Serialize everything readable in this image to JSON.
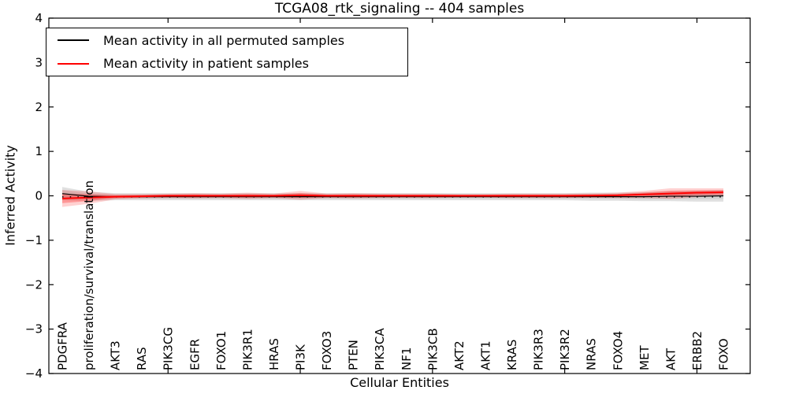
{
  "figure": {
    "title": "TCGA08_rtk_signaling -- 404 samples",
    "xlabel": "Cellular Entities",
    "ylabel": "Inferred Activity"
  },
  "legend": {
    "position": "upper left",
    "entries": [
      {
        "label": "Mean activity in all permuted samples",
        "color": "#000000"
      },
      {
        "label": "Mean activity in patient samples",
        "color": "#ff0000"
      }
    ]
  },
  "chart_data": {
    "type": "line",
    "title": "TCGA08_rtk_signaling -- 404 samples",
    "xlabel": "Cellular Entities",
    "ylabel": "Inferred Activity",
    "ylim": [
      -4,
      4
    ],
    "ytick_values": [
      4,
      3,
      2,
      1,
      0,
      -1,
      -2,
      -3,
      -4
    ],
    "ytick_labels": [
      "4",
      "3",
      "2",
      "1",
      "0",
      "−1",
      "−2",
      "−3",
      "−4"
    ],
    "grid": false,
    "legend_position": "upper left",
    "categories": [
      "PDGFRA",
      "proliferation/survival/translation",
      "AKT3",
      "RAS",
      "PIK3CG",
      "EGFR",
      "FOXO1",
      "PIK3R1",
      "HRAS",
      "PI3K",
      "FOXO3",
      "PTEN",
      "PIK3CA",
      "NF1",
      "PIK3CB",
      "AKT2",
      "AKT1",
      "KRAS",
      "PIK3R3",
      "PIK3R2",
      "NRAS",
      "FOXO4",
      "MET",
      "AKT",
      "ERBB2",
      "FOXO"
    ],
    "x_major_tick_indices": [
      4,
      9,
      14,
      19,
      24
    ],
    "series": [
      {
        "name": "Mean activity in all permuted samples",
        "color": "#000000",
        "line_width": 1.2,
        "values": [
          0.05,
          -0.01,
          -0.02,
          -0.02,
          -0.02,
          -0.02,
          -0.02,
          -0.02,
          -0.02,
          -0.02,
          -0.02,
          -0.02,
          -0.02,
          -0.02,
          -0.02,
          -0.02,
          -0.02,
          -0.02,
          -0.02,
          -0.02,
          -0.02,
          -0.02,
          -0.02,
          -0.01,
          -0.01,
          0.0
        ],
        "band_std": [
          0.15,
          0.1,
          0.08,
          0.08,
          0.08,
          0.08,
          0.08,
          0.08,
          0.08,
          0.08,
          0.08,
          0.08,
          0.08,
          0.08,
          0.08,
          0.08,
          0.08,
          0.08,
          0.08,
          0.08,
          0.09,
          0.09,
          0.1,
          0.11,
          0.12,
          0.13
        ],
        "band_color": "rgba(0,0,0,0.12)",
        "band_inner_color": "rgba(0,0,0,0.06)"
      },
      {
        "name": "Mean activity in patient samples",
        "color": "#ff0000",
        "line_width": 2,
        "values": [
          -0.06,
          -0.04,
          -0.02,
          -0.01,
          0.0,
          0.0,
          0.0,
          0.0,
          0.0,
          0.01,
          0.0,
          0.0,
          0.0,
          0.0,
          0.0,
          0.0,
          0.0,
          0.0,
          0.0,
          0.0,
          0.005,
          0.01,
          0.03,
          0.05,
          0.07,
          0.08
        ],
        "band_std": [
          0.19,
          0.14,
          0.06,
          0.05,
          0.05,
          0.06,
          0.05,
          0.07,
          0.05,
          0.1,
          0.05,
          0.06,
          0.05,
          0.05,
          0.05,
          0.04,
          0.04,
          0.05,
          0.05,
          0.05,
          0.05,
          0.06,
          0.08,
          0.12,
          0.1,
          0.09
        ],
        "band_color": "rgba(255,0,0,0.18)",
        "band_inner_color": "rgba(255,0,0,0.28)"
      }
    ],
    "zero_reference": {
      "style": "dotted",
      "color": "#000000",
      "value": -0.025
    }
  },
  "layout_colors": {
    "background": "#ffffff",
    "axes": "#000000"
  }
}
